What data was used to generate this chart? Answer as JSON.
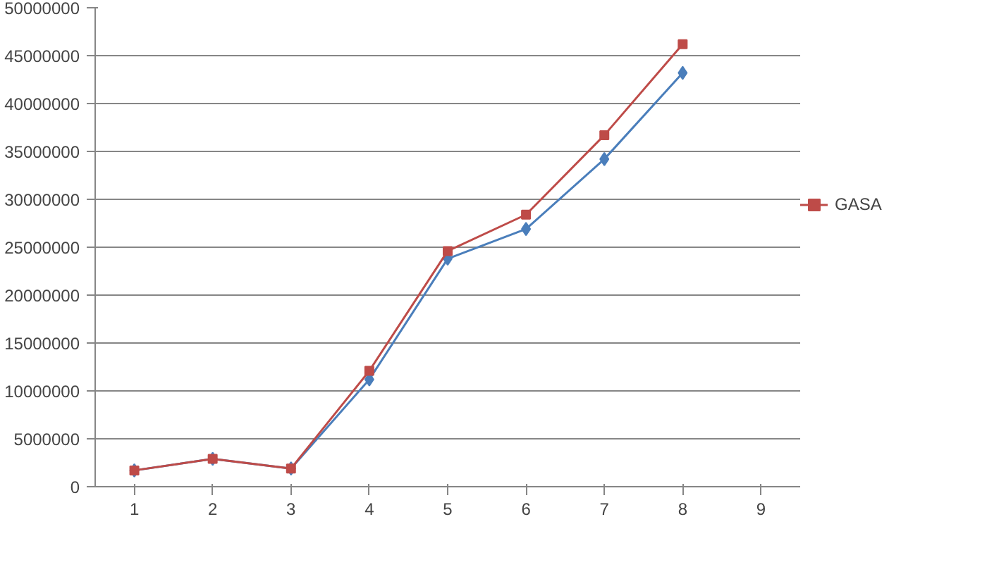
{
  "chart_data": {
    "type": "line",
    "categories": [
      "1",
      "2",
      "3",
      "4",
      "5",
      "6",
      "7",
      "8",
      "9"
    ],
    "series": [
      {
        "color": "#4a7ebb",
        "marker": "diamond",
        "values": [
          1700000,
          2900000,
          1900000,
          11200000,
          23800000,
          26900000,
          34200000,
          43200000,
          null
        ]
      },
      {
        "name": "GASA",
        "color": "#be4b48",
        "marker": "square",
        "values": [
          1700000,
          2900000,
          1900000,
          12100000,
          24600000,
          28400000,
          36700000,
          46200000,
          null
        ]
      }
    ],
    "ylim": [
      0,
      50000000
    ],
    "yticks": [
      0,
      5000000,
      10000000,
      15000000,
      20000000,
      25000000,
      30000000,
      35000000,
      40000000,
      45000000,
      50000000
    ],
    "grid": "y",
    "legend": "right"
  }
}
